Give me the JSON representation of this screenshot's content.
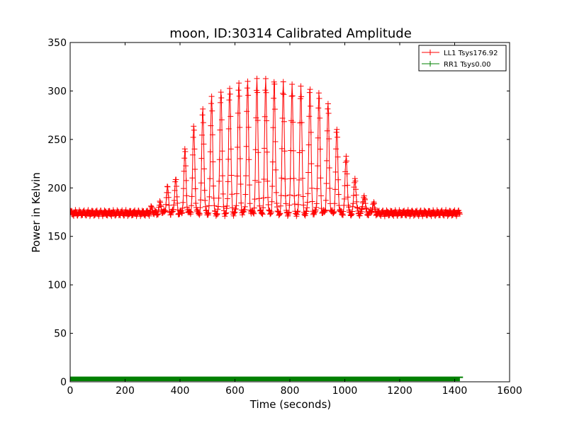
{
  "chart_data": {
    "type": "line",
    "title": "moon, ID:30314 Calibrated Amplitude",
    "xlabel": "Time (seconds)",
    "ylabel": "Power in Kelvin",
    "xlim": [
      0,
      1600
    ],
    "ylim": [
      0,
      350
    ],
    "xticks": [
      "0",
      "200",
      "400",
      "600",
      "800",
      "1000",
      "1200",
      "1400",
      "1600"
    ],
    "yticks": [
      "0",
      "50",
      "100",
      "150",
      "200",
      "250",
      "300",
      "350"
    ],
    "legend_position": "top-right",
    "grid": false,
    "series": [
      {
        "name": "LL1 Tsys176.92",
        "color": "#ff0000",
        "marker": "+",
        "x_range": [
          0,
          1420
        ],
        "baseline": 174,
        "sweep_peaks": [
          {
            "x": 297,
            "y": 179
          },
          {
            "x": 328,
            "y": 184
          },
          {
            "x": 354,
            "y": 200
          },
          {
            "x": 384,
            "y": 209
          },
          {
            "x": 418,
            "y": 238
          },
          {
            "x": 450,
            "y": 262
          },
          {
            "x": 483,
            "y": 281
          },
          {
            "x": 515,
            "y": 295
          },
          {
            "x": 549,
            "y": 302
          },
          {
            "x": 581,
            "y": 305
          },
          {
            "x": 614,
            "y": 308
          },
          {
            "x": 646,
            "y": 309
          },
          {
            "x": 680,
            "y": 310
          },
          {
            "x": 712,
            "y": 311
          },
          {
            "x": 743,
            "y": 311
          },
          {
            "x": 776,
            "y": 310
          },
          {
            "x": 808,
            "y": 308
          },
          {
            "x": 840,
            "y": 306
          },
          {
            "x": 873,
            "y": 303
          },
          {
            "x": 906,
            "y": 297
          },
          {
            "x": 939,
            "y": 286
          },
          {
            "x": 971,
            "y": 260
          },
          {
            "x": 1005,
            "y": 233
          },
          {
            "x": 1037,
            "y": 211
          },
          {
            "x": 1070,
            "y": 193
          },
          {
            "x": 1104,
            "y": 184
          }
        ]
      },
      {
        "name": "RR1 Tsys0.00",
        "color": "#008000",
        "marker": "+",
        "x_range": [
          0,
          1420
        ],
        "baseline": 2.5
      }
    ]
  }
}
